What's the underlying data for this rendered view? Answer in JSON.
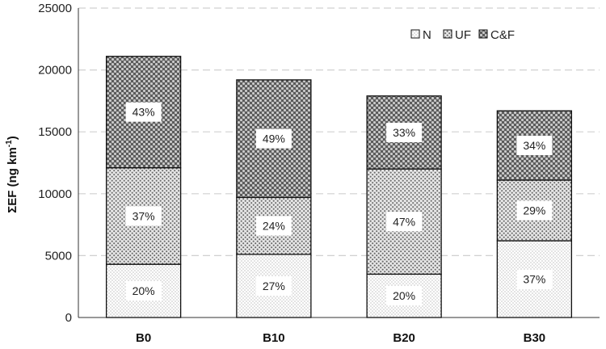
{
  "chart_data": {
    "type": "bar",
    "stacked": true,
    "categories": [
      "B0",
      "B10",
      "B20",
      "B30"
    ],
    "series": [
      {
        "name": "N",
        "values": [
          4300,
          5100,
          3500,
          6200
        ],
        "labels": [
          "20%",
          "27%",
          "20%",
          "37%"
        ],
        "pattern": "fine-dots"
      },
      {
        "name": "UF",
        "values": [
          7800,
          4600,
          8500,
          4900
        ],
        "labels": [
          "37%",
          "24%",
          "47%",
          "29%"
        ],
        "pattern": "medium-dots"
      },
      {
        "name": "C&F",
        "values": [
          9000,
          9500,
          5900,
          5600
        ],
        "labels": [
          "43%",
          "49%",
          "33%",
          "34%"
        ],
        "pattern": "coarse-dots"
      }
    ],
    "ylabel_main": "ΣEF (ng km",
    "ylabel_sup": "-1",
    "ylabel_close": ")",
    "xlabel": "",
    "ylim": [
      0,
      25000
    ],
    "yticks": [
      0,
      5000,
      10000,
      15000,
      20000,
      25000
    ],
    "grid": "horizontal-dashed",
    "legend": "top-right"
  }
}
